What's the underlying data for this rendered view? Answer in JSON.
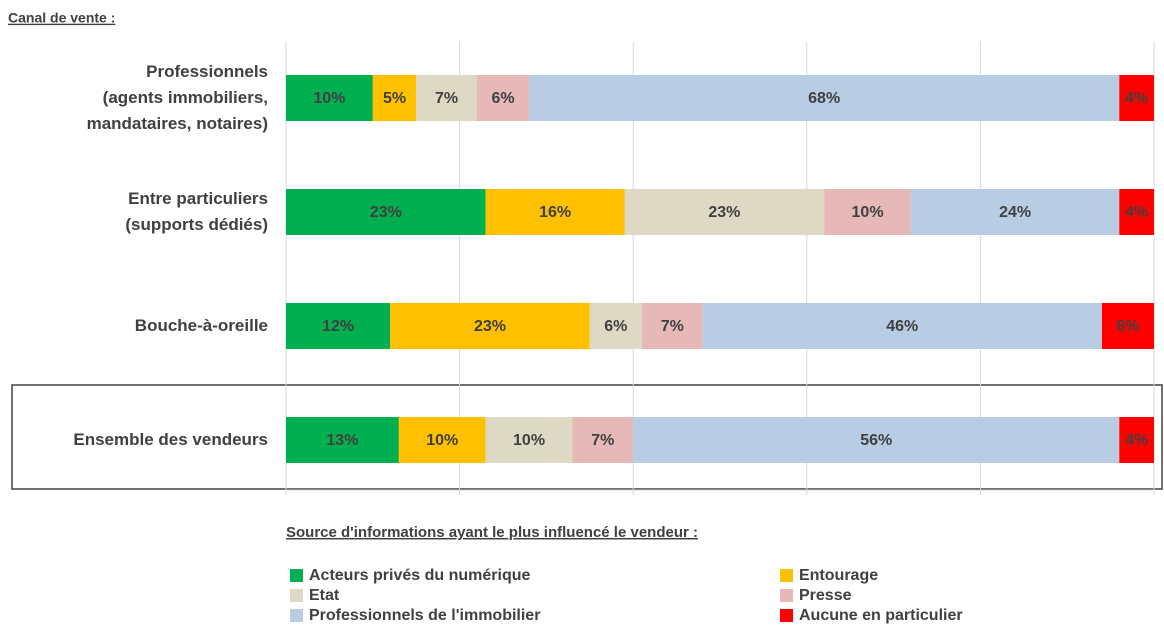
{
  "chart_data": {
    "type": "stacked_barh",
    "title": "Canal de vente :",
    "legend_title": "Source d'informations ayant le plus influencé le vendeur :",
    "categories": [
      "Professionnels\n(agents immobiliers,\nmandataires, notaires)",
      "Entre particuliers\n(supports dédiés)",
      "Bouche-à-oreille",
      "Ensemble des vendeurs"
    ],
    "series": [
      {
        "name": "Acteurs privés du numérique",
        "color": "#00b050",
        "values": [
          10,
          23,
          12,
          13
        ],
        "value_labels": [
          "10%",
          "23%",
          "12%",
          "13%"
        ]
      },
      {
        "name": "Entourage",
        "color": "#ffc000",
        "values": [
          5,
          16,
          23,
          10
        ],
        "value_labels": [
          "5%",
          "16%",
          "23%",
          "10%"
        ]
      },
      {
        "name": "Etat",
        "color": "#ddd9c4",
        "values": [
          7,
          23,
          6,
          10
        ],
        "value_labels": [
          "7%",
          "23%",
          "6%",
          "10%"
        ]
      },
      {
        "name": "Presse",
        "color": "#e6b9b8",
        "values": [
          6,
          10,
          7,
          7
        ],
        "value_labels": [
          "6%",
          "10%",
          "7%",
          "7%"
        ]
      },
      {
        "name": "Professionnels de l'immobilier",
        "color": "#b8cce4",
        "values": [
          68,
          24,
          46,
          56
        ],
        "value_labels": [
          "68%",
          "24%",
          "46%",
          "56%"
        ]
      },
      {
        "name": "Aucune en particulier",
        "color": "#ff0000",
        "values": [
          4,
          4,
          6,
          4
        ],
        "value_labels": [
          "4%",
          "4%",
          "6%",
          "4%"
        ]
      }
    ],
    "xlim": [
      0,
      100
    ],
    "xticks": [
      0,
      20,
      40,
      60,
      80,
      100
    ],
    "grid": true
  }
}
